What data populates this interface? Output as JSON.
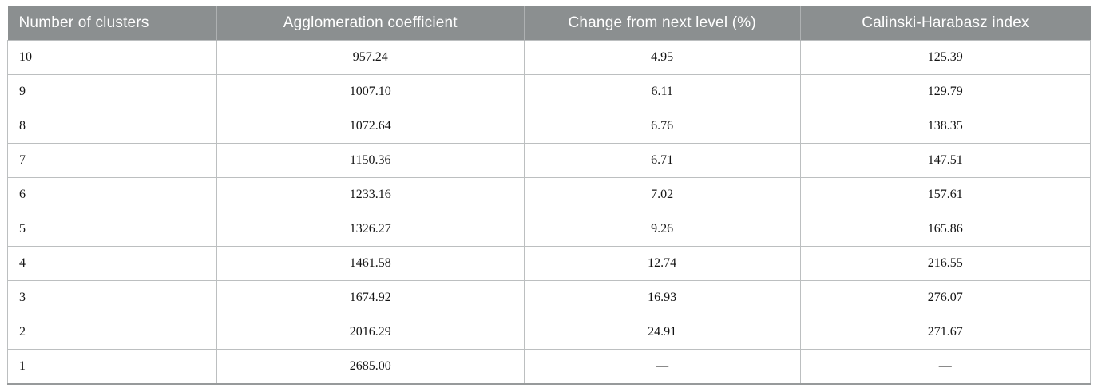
{
  "colors": {
    "header_bg": "#8b8f90",
    "header_text": "#ffffff",
    "header_divider": "#aeb1b2",
    "body_border": "#bcbfc0",
    "bottom_rule": "#979a9b",
    "body_text": "#141414",
    "page_bg": "#ffffff"
  },
  "table": {
    "headers": [
      "Number of clusters",
      "Agglomeration coefficient",
      "Change from next level (%)",
      "Calinski-Harabasz index"
    ],
    "rows": [
      [
        "10",
        "957.24",
        "4.95",
        "125.39"
      ],
      [
        "9",
        "1007.10",
        "6.11",
        "129.79"
      ],
      [
        "8",
        "1072.64",
        "6.76",
        "138.35"
      ],
      [
        "7",
        "1150.36",
        "6.71",
        "147.51"
      ],
      [
        "6",
        "1233.16",
        "7.02",
        "157.61"
      ],
      [
        "5",
        "1326.27",
        "9.26",
        "165.86"
      ],
      [
        "4",
        "1461.58",
        "12.74",
        "216.55"
      ],
      [
        "3",
        "1674.92",
        "16.93",
        "276.07"
      ],
      [
        "2",
        "2016.29",
        "24.91",
        "271.67"
      ],
      [
        "1",
        "2685.00",
        "—",
        "—"
      ]
    ]
  },
  "chart_data": {
    "type": "table",
    "title": "",
    "columns": [
      "Number of clusters",
      "Agglomeration coefficient",
      "Change from next level (%)",
      "Calinski-Harabasz index"
    ],
    "number_of_clusters": [
      10,
      9,
      8,
      7,
      6,
      5,
      4,
      3,
      2,
      1
    ],
    "agglomeration_coefficient": [
      957.24,
      1007.1,
      1072.64,
      1150.36,
      1233.16,
      1326.27,
      1461.58,
      1674.92,
      2016.29,
      2685.0
    ],
    "change_from_next_level_pct": [
      4.95,
      6.11,
      6.76,
      6.71,
      7.02,
      9.26,
      12.74,
      16.93,
      24.91,
      null
    ],
    "calinski_harabasz_index": [
      125.39,
      129.79,
      138.35,
      147.51,
      157.61,
      165.86,
      216.55,
      276.07,
      271.67,
      null
    ]
  }
}
